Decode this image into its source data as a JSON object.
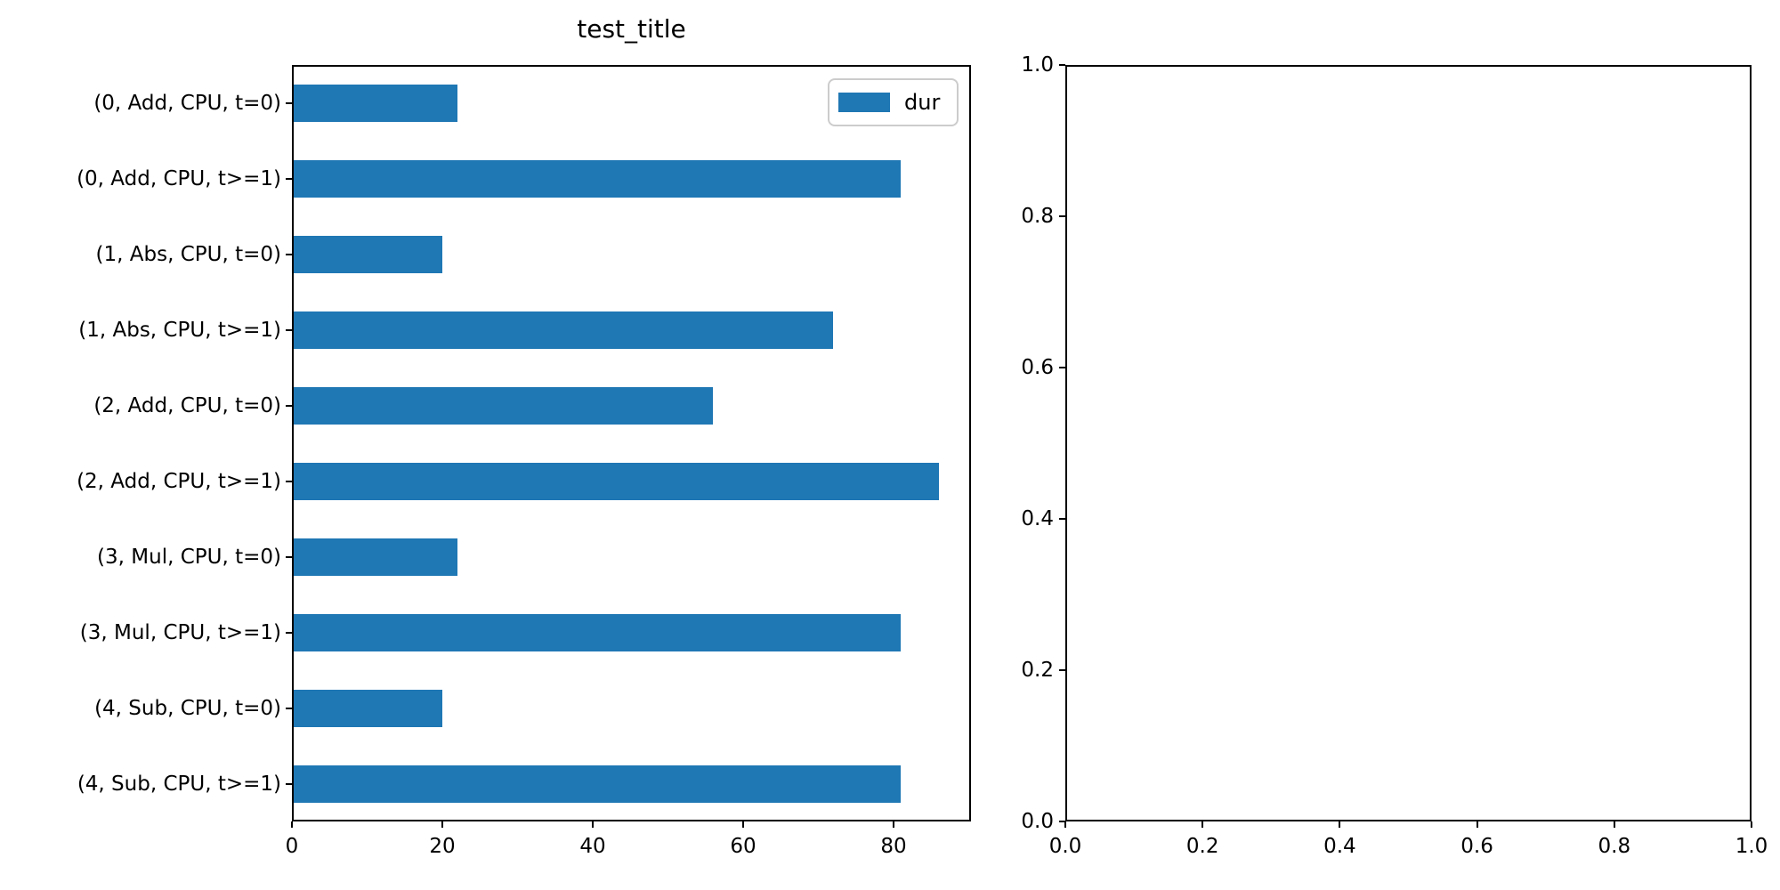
{
  "chart_data": [
    {
      "type": "bar",
      "orientation": "horizontal",
      "title": "test_title",
      "categories": [
        "(0, Add, CPU, t=0)",
        "(0, Add, CPU, t>=1)",
        "(1, Abs, CPU, t=0)",
        "(1, Abs, CPU, t>=1)",
        "(2, Add, CPU, t=0)",
        "(2, Add, CPU, t>=1)",
        "(3, Mul, CPU, t=0)",
        "(3, Mul, CPU, t>=1)",
        "(4, Sub, CPU, t=0)",
        "(4, Sub, CPU, t>=1)"
      ],
      "series": [
        {
          "name": "dur",
          "values": [
            22,
            81,
            20,
            72,
            56,
            86,
            22,
            81,
            20,
            81
          ]
        }
      ],
      "xlabel": "",
      "ylabel": "",
      "xlim": [
        0,
        90.3
      ],
      "xticks": [
        0,
        20,
        40,
        60,
        80
      ],
      "grid": false,
      "legend_position": "upper right",
      "bar_color": "#1f77b4"
    },
    {
      "type": "empty",
      "title": "",
      "xlim": [
        0,
        1
      ],
      "ylim": [
        0,
        1
      ],
      "xticks": [
        "0.0",
        "0.2",
        "0.4",
        "0.6",
        "0.8",
        "1.0"
      ],
      "yticks": [
        "0.0",
        "0.2",
        "0.4",
        "0.6",
        "0.8",
        "1.0"
      ],
      "grid": false
    }
  ]
}
